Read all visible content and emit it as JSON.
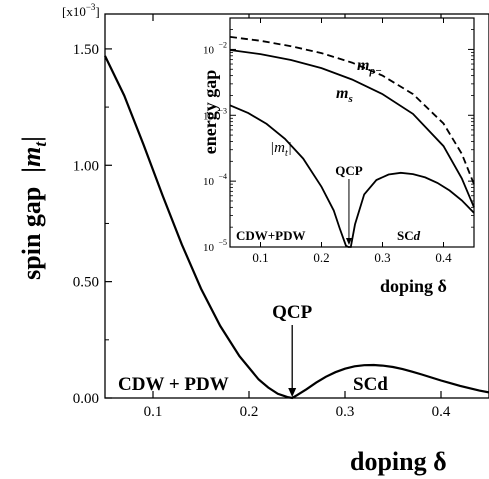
{
  "chart_data": [
    {
      "type": "line",
      "title": "",
      "xlabel": "doping δ",
      "ylabel_main": "spin gap",
      "ylabel_symbol": "|m",
      "ylabel_subscript": "t",
      "ylabel_close": "|",
      "y_multiplier_label": "[x10",
      "y_multiplier_exp": "−3",
      "y_multiplier_close": "]",
      "xlim": [
        0.05,
        0.45
      ],
      "ylim": [
        0,
        1.65
      ],
      "x_ticks": [
        0.1,
        0.2,
        0.3,
        0.4
      ],
      "x_tick_labels": [
        "0.1",
        "0.2",
        "0.3",
        "0.4"
      ],
      "y_ticks": [
        0,
        0.5,
        1.0,
        1.5
      ],
      "y_tick_labels": [
        "0.00",
        "0.50",
        "1.00",
        "1.50"
      ],
      "grid": false,
      "series": [
        {
          "x": [
            0.05,
            0.07,
            0.09,
            0.11,
            0.13,
            0.15,
            0.17,
            0.19,
            0.21,
            0.22,
            0.23,
            0.24,
            0.245,
            0.25,
            0.26,
            0.27,
            0.28,
            0.29,
            0.3,
            0.31,
            0.32,
            0.33,
            0.34,
            0.35,
            0.36,
            0.37,
            0.38,
            0.39,
            0.4,
            0.42,
            0.44,
            0.45
          ],
          "y": [
            1.47,
            1.3,
            1.09,
            0.87,
            0.66,
            0.47,
            0.31,
            0.18,
            0.08,
            0.045,
            0.018,
            0.004,
            0.0,
            0.012,
            0.038,
            0.066,
            0.091,
            0.111,
            0.126,
            0.136,
            0.141,
            0.142,
            0.139,
            0.133,
            0.124,
            0.113,
            0.101,
            0.088,
            0.075,
            0.052,
            0.032,
            0.024
          ]
        }
      ],
      "annotations": {
        "qcp": "QCP",
        "qcp_x": 0.245,
        "cdw_pdw": "CDW + PDW",
        "scd": "SCd"
      }
    },
    {
      "type": "line",
      "title": "",
      "xlabel": "doping δ",
      "ylabel": "energy gap",
      "yscale": "log",
      "xlim": [
        0.05,
        0.45
      ],
      "ylim": [
        1e-05,
        0.03
      ],
      "x_ticks": [
        0.1,
        0.2,
        0.3,
        0.4
      ],
      "x_tick_labels": [
        "0.1",
        "0.2",
        "0.3",
        "0.4"
      ],
      "y_ticks": [
        1e-05,
        0.0001,
        0.001,
        0.01
      ],
      "y_tick_base": "10",
      "y_tick_exps": [
        "−5",
        "−4",
        "−3",
        "−2"
      ],
      "grid": false,
      "series": [
        {
          "label_main": "m",
          "label_sub": "ρ−",
          "style": "dashed",
          "x": [
            0.05,
            0.1,
            0.15,
            0.2,
            0.25,
            0.3,
            0.35,
            0.4,
            0.43,
            0.45
          ],
          "y": [
            0.0155,
            0.0135,
            0.0112,
            0.0088,
            0.0063,
            0.004,
            0.0021,
            0.00075,
            0.00026,
            9e-05
          ]
        },
        {
          "label_main": "m",
          "label_sub": "s",
          "style": "solid",
          "x": [
            0.05,
            0.1,
            0.15,
            0.2,
            0.25,
            0.3,
            0.35,
            0.4,
            0.43,
            0.45
          ],
          "y": [
            0.0098,
            0.0085,
            0.0069,
            0.0052,
            0.0035,
            0.0021,
            0.00105,
            0.00034,
            0.00011,
            4e-05
          ]
        },
        {
          "label_main": "|m",
          "label_sub": "t",
          "label_close": "|",
          "style": "solid",
          "x": [
            0.05,
            0.08,
            0.11,
            0.14,
            0.17,
            0.2,
            0.22,
            0.23,
            0.24,
            0.244,
            0.248,
            0.255,
            0.27,
            0.29,
            0.31,
            0.33,
            0.35,
            0.37,
            0.39,
            0.41,
            0.43,
            0.45
          ],
          "y": [
            0.00142,
            0.00108,
            0.00074,
            0.00044,
            0.00022,
            8.2e-05,
            3.6e-05,
            1.9e-05,
            1.05e-05,
            1e-05,
            1e-05,
            2.2e-05,
            6.3e-05,
            0.000104,
            0.000126,
            0.000134,
            0.000128,
            0.000114,
            9.4e-05,
            7.2e-05,
            5.1e-05,
            3.3e-05
          ]
        }
      ],
      "annotations": {
        "qcp": "QCP",
        "qcp_x": 0.245,
        "cdw_pdw": "CDW+PDW",
        "scd_main": "SC",
        "scd_italic": "d"
      }
    }
  ]
}
